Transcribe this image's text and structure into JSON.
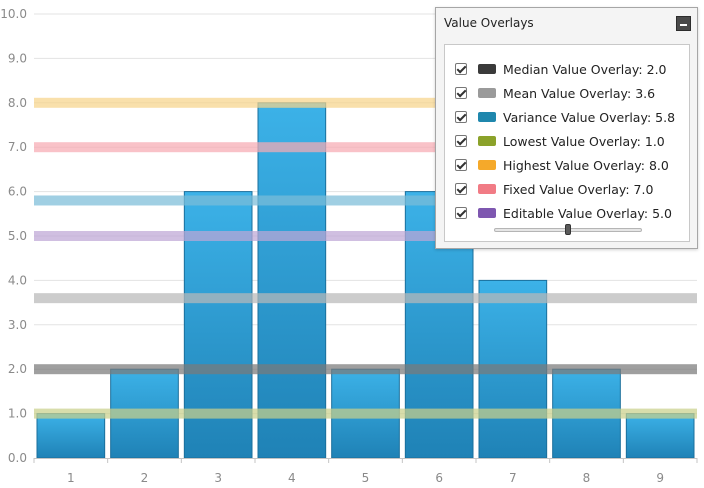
{
  "chart_data": {
    "type": "bar",
    "categories": [
      "1",
      "2",
      "3",
      "4",
      "5",
      "6",
      "7",
      "8",
      "9"
    ],
    "values": [
      1,
      2,
      6,
      8,
      2,
      6,
      4,
      2,
      1
    ],
    "ylim": [
      0,
      10
    ],
    "yticks": [
      "0.0",
      "1.0",
      "2.0",
      "3.0",
      "4.0",
      "5.0",
      "6.0",
      "7.0",
      "8.0",
      "9.0",
      "10.0"
    ],
    "bar_color": "#2a9bd6",
    "grid": true,
    "overlays": [
      {
        "key": "median",
        "value": 2.0,
        "color": "#7a7a7a"
      },
      {
        "key": "mean",
        "value": 3.6,
        "color": "#b8b8b8"
      },
      {
        "key": "variance",
        "value": 5.8,
        "color": "#7bbcd8"
      },
      {
        "key": "lowest",
        "value": 1.0,
        "color": "#c9d08a"
      },
      {
        "key": "highest",
        "value": 8.0,
        "color": "#f7d48a"
      },
      {
        "key": "fixed",
        "value": 7.0,
        "color": "#f7aab3"
      },
      {
        "key": "editable",
        "value": 5.0,
        "color": "#bea6d6"
      }
    ]
  },
  "panel": {
    "title": "Value Overlays",
    "items": [
      {
        "label": "Median Value Overlay: 2.0",
        "checked": true,
        "swatch": "#3a3a3a"
      },
      {
        "label": "Mean Value Overlay: 3.6",
        "checked": true,
        "swatch": "#9a9a9a"
      },
      {
        "label": "Variance Value Overlay: 5.8",
        "checked": true,
        "swatch": "#1f87ad"
      },
      {
        "label": "Lowest Value Overlay: 1.0",
        "checked": true,
        "swatch": "#8ba22a"
      },
      {
        "label": "Highest Value Overlay: 8.0",
        "checked": true,
        "swatch": "#f5a92a"
      },
      {
        "label": "Fixed Value Overlay: 7.0",
        "checked": true,
        "swatch": "#f17b85"
      },
      {
        "label": "Editable Value Overlay: 5.0",
        "checked": true,
        "swatch": "#7e57b0"
      }
    ],
    "slider_value": 5.0,
    "slider_range": [
      0,
      10
    ]
  }
}
